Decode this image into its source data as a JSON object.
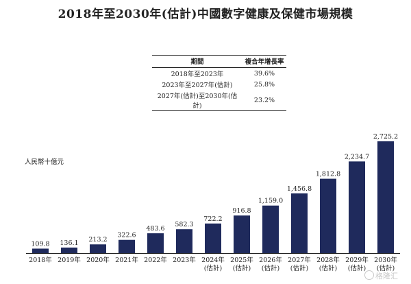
{
  "title": "2018年至2030年(估計)中國數字健康及保健市場規模",
  "cagr_table": {
    "headers": [
      "期間",
      "複合年增長率"
    ],
    "rows": [
      [
        "2018年至2023年",
        "39.6%"
      ],
      [
        "2023年至2027年(估計)",
        "25.8%"
      ],
      [
        "2027年(估計)至2030年(估計)",
        "23.2%"
      ]
    ]
  },
  "chart_data": {
    "type": "bar",
    "unit_label": "人民幣十億元",
    "categories": [
      "2018年",
      "2019年",
      "2020年",
      "2021年",
      "2022年",
      "2023年",
      "2024年 (估計)",
      "2025年 (估計)",
      "2026年 (估計)",
      "2027年 (估計)",
      "2028年 (估計)",
      "2029年 (估計)",
      "2030年 (估計)"
    ],
    "values": [
      109.8,
      136.1,
      213.2,
      322.6,
      483.6,
      582.3,
      722.2,
      916.8,
      1159.0,
      1456.8,
      1812.8,
      2234.7,
      2725.2
    ],
    "value_labels": [
      "109.8",
      "136.1",
      "213.2",
      "322.6",
      "483.6",
      "582.3",
      "722.2",
      "916.8",
      "1,159.0",
      "1,456.8",
      "1,812.8",
      "2,234.7",
      "2,725.2"
    ],
    "bar_color": "#1f2a5c",
    "ylim": [
      0,
      2725.2
    ],
    "grid": false,
    "legend": "none"
  },
  "watermark": "格隆汇"
}
